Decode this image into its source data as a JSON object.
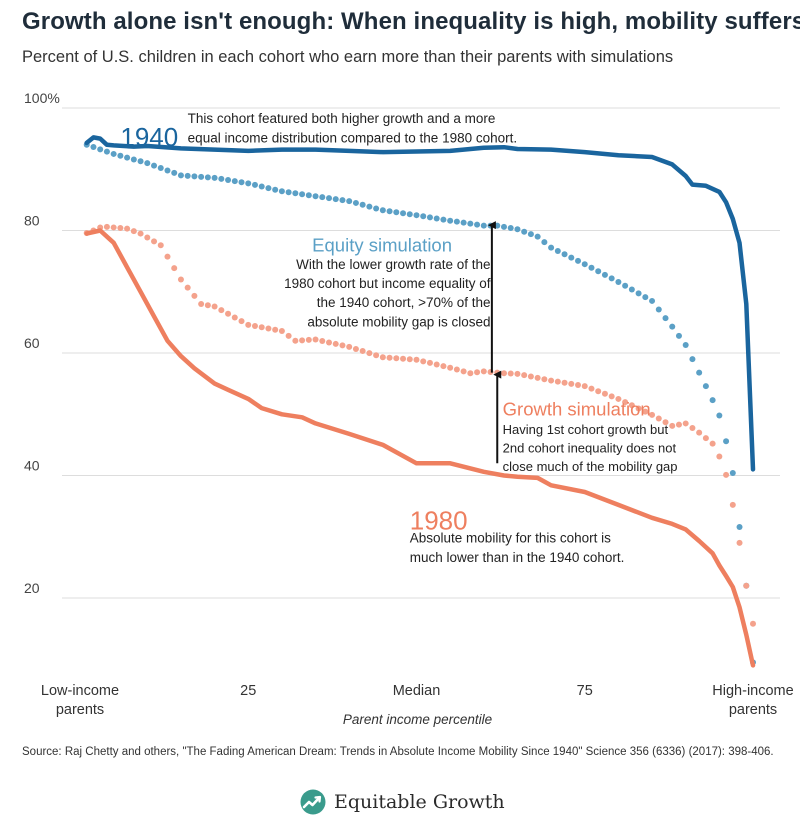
{
  "title": "Growth alone isn't enough: When inequality is high, mobility suffers",
  "subtitle": "Percent of U.S. children in each cohort who earn more than their parents with simulations",
  "source": "Source: Raj Chetty and others, \"The Fading American Dream: Trends in Absolute Income Mobility Since 1940\" Science 356 (6336) (2017): 398-406.",
  "brand": {
    "name": "Equitable Growth",
    "icon": "leaf-growth-icon",
    "icon_color": "#3a9b8c"
  },
  "colors": {
    "c1940": "#1a659e",
    "equity": "#5ba0c6",
    "growth": "#f4a28c",
    "c1980": "#ee7f5f",
    "grid": "#dddddd",
    "text": "#222222"
  },
  "chart_data": {
    "type": "line",
    "xlabel": "Parent income percentile",
    "ylabel": "",
    "xlim": [
      0,
      100
    ],
    "ylim": [
      8,
      100
    ],
    "grid": true,
    "yticks": [
      {
        "value": 100,
        "label": "100%"
      },
      {
        "value": 80,
        "label": "80"
      },
      {
        "value": 60,
        "label": "60"
      },
      {
        "value": 40,
        "label": "40"
      },
      {
        "value": 20,
        "label": "20"
      }
    ],
    "xticks": [
      {
        "value": 0,
        "label": "Low-income\nparents"
      },
      {
        "value": 25,
        "label": "25"
      },
      {
        "value": 50,
        "label": "Median"
      },
      {
        "value": 75,
        "label": "75"
      },
      {
        "value": 100,
        "label": "High-income\nparents"
      }
    ],
    "series": [
      {
        "name": "1940",
        "style": "solid",
        "color_key": "c1940",
        "x": [
          1,
          2,
          3,
          4,
          5,
          8,
          10,
          15,
          20,
          25,
          30,
          35,
          40,
          45,
          50,
          55,
          60,
          63,
          65,
          70,
          75,
          80,
          85,
          88,
          90,
          91,
          93,
          95,
          96,
          97,
          98,
          99,
          100
        ],
        "y": [
          94.3,
          95.2,
          95.0,
          94.0,
          93.9,
          93.7,
          93.8,
          93.4,
          93.2,
          93.0,
          93.2,
          93.2,
          93.0,
          92.8,
          92.9,
          93.0,
          93.5,
          93.6,
          93.3,
          93.2,
          92.8,
          92.3,
          92.0,
          90.8,
          88.9,
          87.5,
          87.3,
          86.3,
          84.6,
          81.9,
          78.0,
          68.0,
          41.0
        ]
      },
      {
        "name": "Equity simulation",
        "style": "dotted",
        "color_key": "equity",
        "x": [
          1,
          5,
          10,
          15,
          20,
          25,
          30,
          35,
          40,
          45,
          50,
          55,
          60,
          62,
          65,
          68,
          70,
          75,
          80,
          85,
          88,
          90,
          91,
          92,
          93,
          94,
          95,
          96,
          97,
          98,
          99,
          100
        ],
        "y": [
          94.0,
          92.5,
          91.0,
          89.0,
          88.6,
          87.7,
          86.4,
          85.6,
          84.8,
          83.3,
          82.5,
          81.6,
          80.8,
          80.8,
          80.2,
          79.0,
          77.2,
          74.5,
          71.6,
          68.5,
          64.3,
          61.3,
          59.0,
          56.8,
          54.6,
          52.3,
          49.8,
          45.6,
          40.4,
          31.6,
          22.0,
          9.5
        ]
      },
      {
        "name": "Growth simulation",
        "style": "dotted",
        "color_key": "growth",
        "x": [
          1,
          2,
          3,
          4,
          5,
          7,
          9,
          12,
          15,
          18,
          20,
          25,
          30,
          32,
          35,
          40,
          45,
          50,
          55,
          58,
          60,
          63,
          65,
          70,
          75,
          80,
          85,
          88,
          90,
          92,
          94,
          95,
          96,
          97,
          98,
          99,
          100
        ],
        "y": [
          79.6,
          80.0,
          80.5,
          80.6,
          80.5,
          80.3,
          79.5,
          77.6,
          72.0,
          68.0,
          67.6,
          64.6,
          63.6,
          62.0,
          62.2,
          61.0,
          59.3,
          58.9,
          57.6,
          56.7,
          57.0,
          56.7,
          56.6,
          55.5,
          54.6,
          52.5,
          49.9,
          48.1,
          48.5,
          47.0,
          45.2,
          43.1,
          40.1,
          35.2,
          29.0,
          22.0,
          15.8
        ]
      },
      {
        "name": "1980",
        "style": "solid",
        "color_key": "c1980",
        "x": [
          1,
          3,
          5,
          7,
          9,
          11,
          13,
          15,
          17,
          20,
          22,
          25,
          27,
          30,
          33,
          35,
          40,
          45,
          50,
          55,
          60,
          63,
          65,
          68,
          70,
          75,
          80,
          85,
          88,
          90,
          92,
          94,
          95,
          96,
          97,
          98,
          99,
          100
        ],
        "y": [
          79.5,
          80.0,
          78.0,
          74.0,
          70.0,
          66.0,
          62.0,
          59.5,
          57.5,
          55.0,
          54.0,
          52.5,
          51.0,
          50.0,
          49.5,
          48.5,
          46.8,
          45.0,
          42.0,
          42.0,
          40.6,
          40.0,
          39.8,
          39.6,
          38.4,
          37.3,
          35.2,
          33.1,
          32.1,
          31.2,
          29.3,
          27.3,
          25.3,
          23.6,
          21.8,
          18.5,
          14.0,
          9.0
        ]
      }
    ],
    "annotations": [
      {
        "name": "label-1940",
        "text": "1940",
        "x": 6,
        "y": 97.2,
        "color_key": "c1940",
        "size": 26
      },
      {
        "name": "note-1940",
        "text": "This cohort featured both higher growth and a more\nequal income distribution compared to the 1980 cohort.",
        "x": 16,
        "y": 99.3,
        "color_key": "text",
        "size": 13.5
      },
      {
        "name": "label-equity",
        "text": "Equity simulation",
        "x": 34.5,
        "y": 79.0,
        "color_key": "equity",
        "size": 18.5
      },
      {
        "name": "note-equity",
        "text": "With the lower growth rate of the\n1980 cohort but income equality of\nthe 1940 cohort, >70% of the\nabsolute mobility gap is closed",
        "x": 61,
        "y": 75.5,
        "color_key": "text",
        "size": 13.5,
        "anchor": "end"
      },
      {
        "name": "label-growth",
        "text": "Growth simulation",
        "x": 62.8,
        "y": 52.2,
        "color_key": "c1980",
        "size": 18.5
      },
      {
        "name": "note-growth",
        "text": "Having 1st cohort growth but\n2nd cohort inequality does not\nclose much of the mobility gap",
        "x": 62.8,
        "y": 48.5,
        "color_key": "text",
        "size": 13
      },
      {
        "name": "label-1980",
        "text": "1980",
        "x": 49,
        "y": 34.6,
        "color_key": "c1980",
        "size": 26
      },
      {
        "name": "note-1980",
        "text": "Absolute mobility for this cohort is\nmuch lower than in the 1940 cohort.",
        "x": 49,
        "y": 30.8,
        "color_key": "text",
        "size": 13.5
      }
    ],
    "arrows": [
      {
        "name": "arrow-equity",
        "x": 61.2,
        "y_from": 56.8,
        "y_to": 81.2
      },
      {
        "name": "arrow-growth",
        "x": 62.0,
        "y_from": 42.0,
        "y_to": 56.8
      }
    ]
  }
}
